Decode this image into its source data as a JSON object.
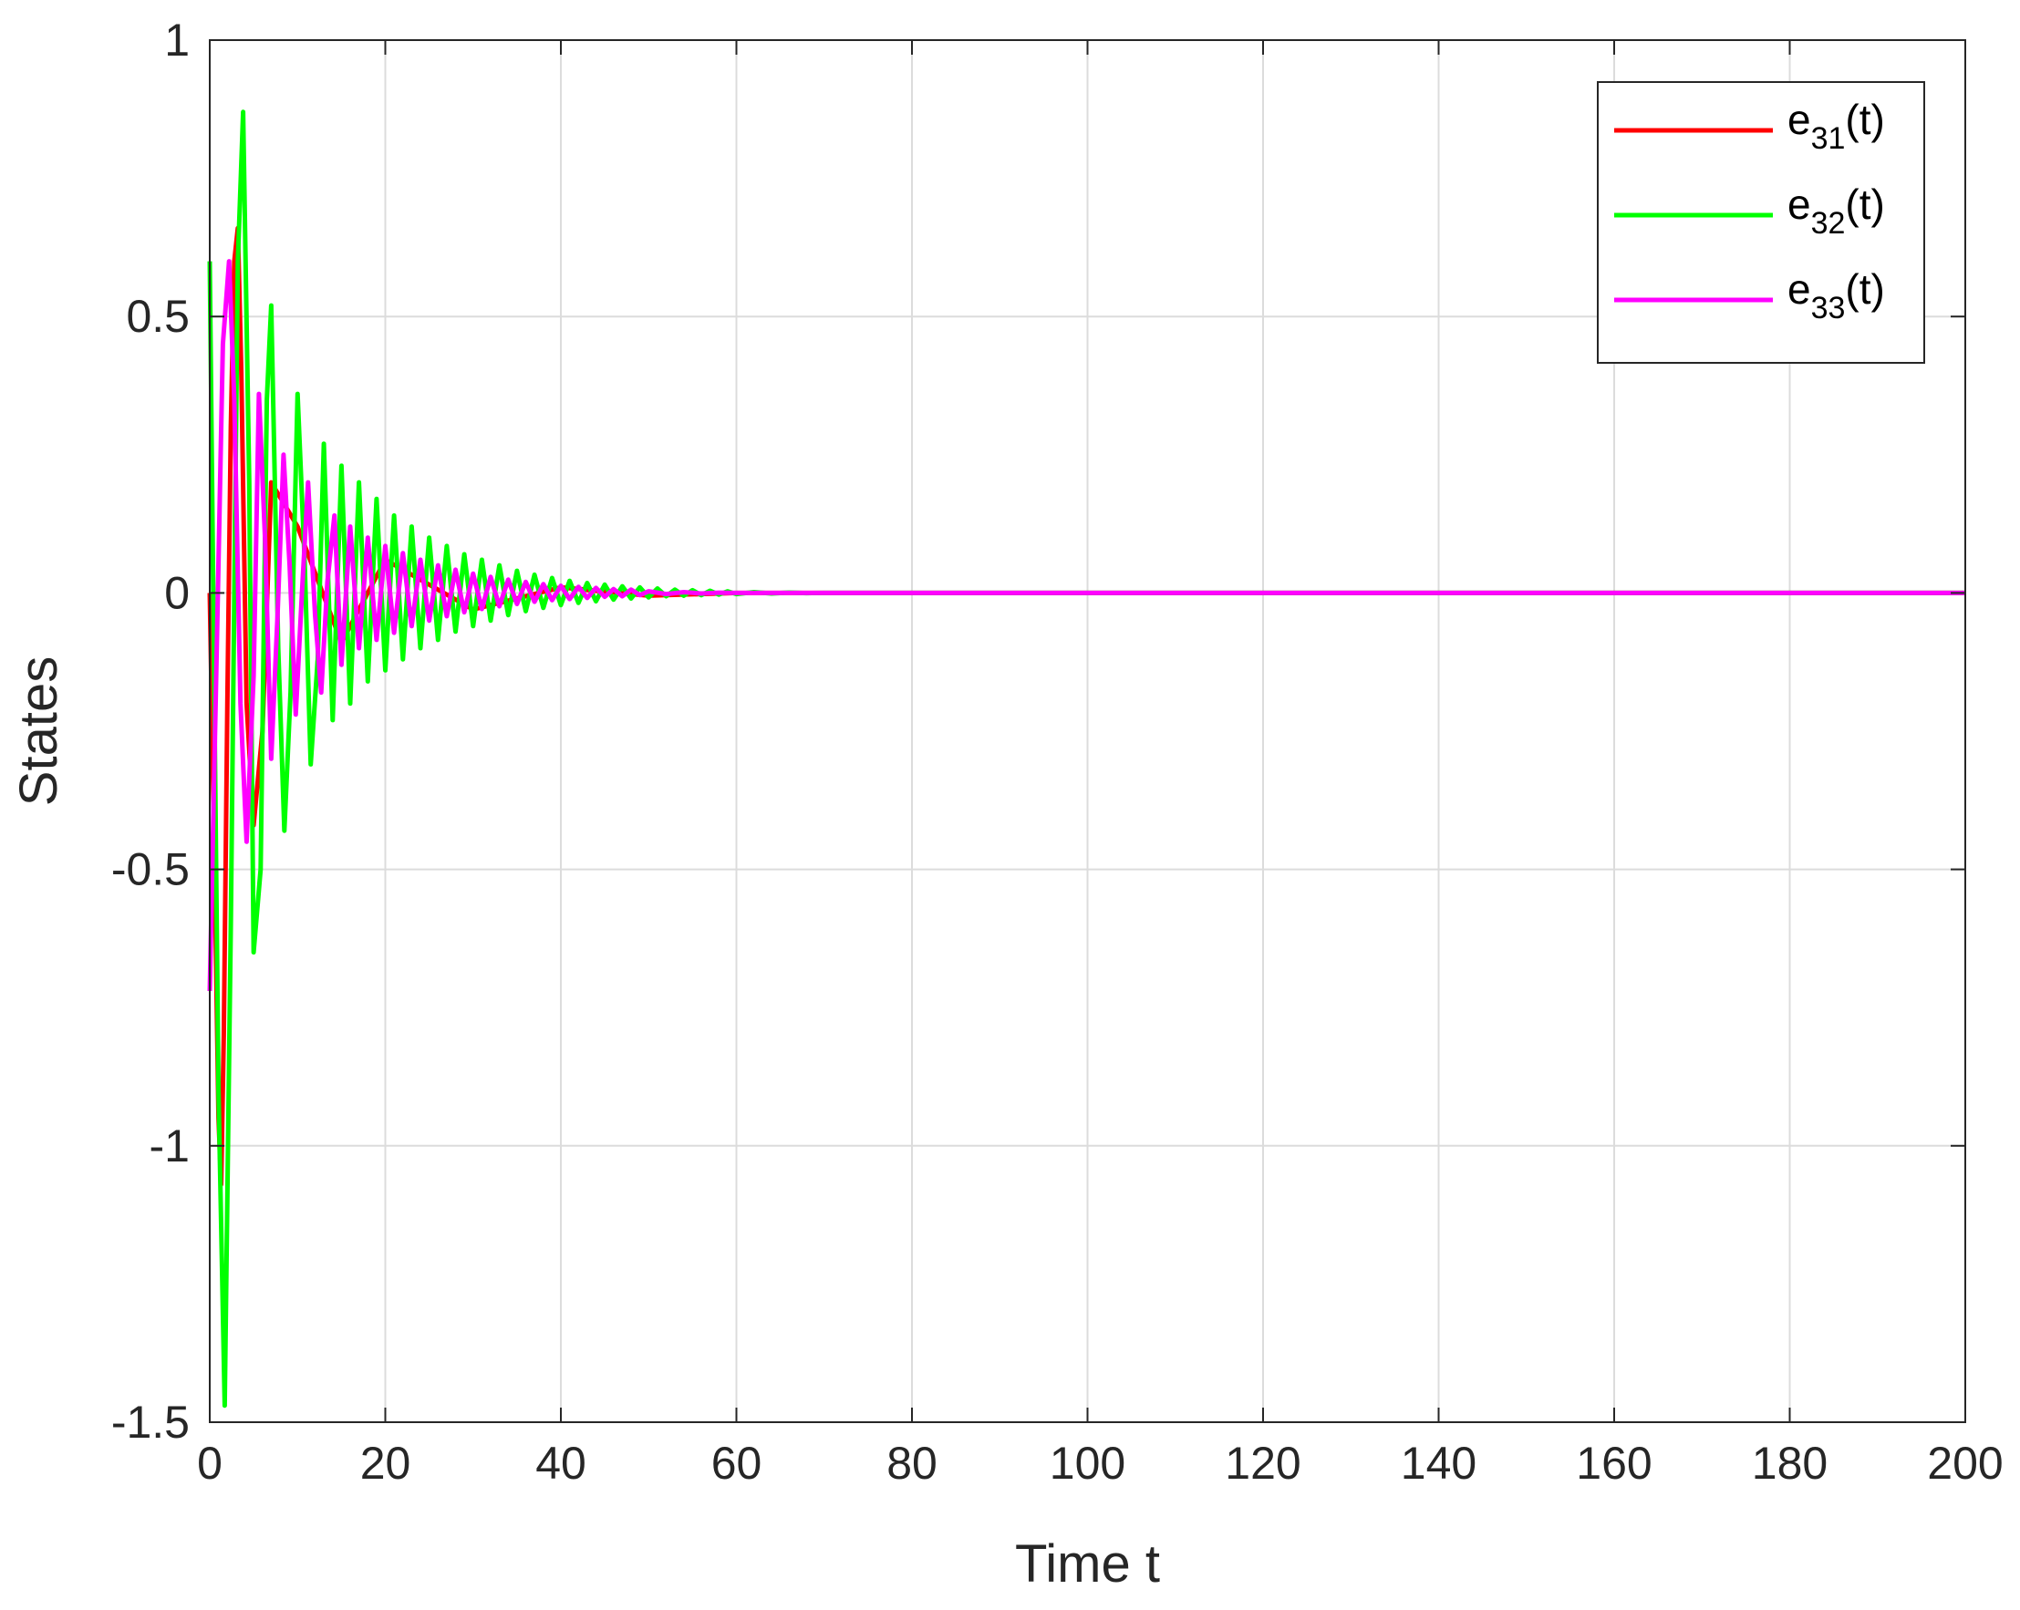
{
  "chart_data": {
    "type": "line",
    "title": "",
    "xlabel": "Time t",
    "ylabel": "States",
    "xlim": [
      0,
      200
    ],
    "ylim": [
      -1.5,
      1
    ],
    "x_ticks": [
      "0",
      "20",
      "40",
      "60",
      "80",
      "100",
      "120",
      "140",
      "160",
      "180",
      "200"
    ],
    "y_ticks": [
      "-1.5",
      "-1",
      "-0.5",
      "0",
      "0.5",
      "1"
    ],
    "grid": true,
    "legend_position": "top-right",
    "series": [
      {
        "name_base": "e",
        "name_sub": "31",
        "name_suffix": "(t)",
        "color": "#ff0000",
        "x": [
          0,
          0.6,
          1.0,
          1.3,
          1.6,
          2.0,
          2.4,
          2.8,
          3.2,
          3.6,
          4.2,
          5.0,
          6.0,
          7.0,
          10.0,
          15.0,
          20.0,
          30.0,
          40.0,
          50.0,
          60.0,
          200.0
        ],
        "y": [
          0.0,
          -0.55,
          -0.95,
          -1.07,
          -0.8,
          -0.2,
          0.3,
          0.6,
          0.66,
          0.4,
          -0.2,
          -0.42,
          -0.25,
          0.2,
          0.12,
          -0.09,
          0.06,
          -0.03,
          0.01,
          -0.005,
          0.0,
          0.0
        ]
      },
      {
        "name_base": "e",
        "name_sub": "32",
        "name_suffix": "(t)",
        "color": "#00ff00",
        "x": [
          0,
          1.0,
          1.7,
          2.4,
          3.2,
          3.8,
          4.5,
          5.0,
          5.8,
          6.5,
          7.0,
          7.8,
          8.5,
          9.2,
          10.0,
          10.8,
          11.5,
          12.3,
          13.0,
          14.0,
          15.0,
          16.0,
          17.0,
          18.0,
          19.0,
          20.0,
          21.0,
          22.0,
          23.0,
          24.0,
          25.0,
          26.0,
          27.0,
          28.0,
          29.0,
          30.0,
          31.0,
          32.0,
          33.0,
          34.0,
          35.0,
          36.0,
          37.0,
          38.0,
          39.0,
          40.0,
          41.0,
          42.0,
          43.0,
          44.0,
          45.0,
          46.0,
          47.0,
          48.0,
          49.0,
          50.0,
          51.0,
          52.0,
          53.0,
          54.0,
          55.0,
          56.0,
          57.0,
          58.0,
          59.0,
          60.0,
          62.0,
          64.0,
          66.0,
          68.0,
          70.0,
          200.0
        ],
        "y": [
          0.6,
          -0.9,
          -1.47,
          -0.6,
          0.6,
          0.87,
          0.2,
          -0.65,
          -0.5,
          0.35,
          0.52,
          -0.1,
          -0.43,
          -0.18,
          0.36,
          0.06,
          -0.31,
          -0.12,
          0.27,
          -0.23,
          0.23,
          -0.2,
          0.2,
          -0.16,
          0.17,
          -0.14,
          0.14,
          -0.12,
          0.12,
          -0.1,
          0.1,
          -0.085,
          0.085,
          -0.07,
          0.07,
          -0.06,
          0.06,
          -0.05,
          0.05,
          -0.04,
          0.04,
          -0.033,
          0.033,
          -0.027,
          0.027,
          -0.022,
          0.022,
          -0.018,
          0.018,
          -0.015,
          0.015,
          -0.012,
          0.012,
          -0.01,
          0.01,
          -0.008,
          0.008,
          -0.006,
          0.006,
          -0.005,
          0.005,
          -0.004,
          0.004,
          -0.003,
          0.003,
          -0.002,
          0.0015,
          -0.001,
          0.0007,
          -0.0004,
          0.0,
          0.0
        ]
      },
      {
        "name_base": "e",
        "name_sub": "33",
        "name_suffix": "(t)",
        "color": "#ff00ff",
        "x": [
          0,
          0.8,
          1.5,
          2.2,
          2.8,
          3.5,
          4.2,
          5.0,
          5.6,
          6.3,
          7.0,
          7.7,
          8.4,
          9.1,
          9.8,
          10.5,
          11.2,
          12.0,
          12.7,
          13.4,
          14.2,
          15.0,
          16.0,
          17.0,
          18.0,
          19.0,
          20.0,
          21.0,
          22.0,
          23.0,
          24.0,
          25.0,
          26.0,
          27.0,
          28.0,
          29.0,
          30.0,
          31.0,
          32.0,
          33.0,
          34.0,
          35.0,
          36.0,
          37.0,
          38.0,
          39.0,
          40.0,
          41.0,
          42.0,
          43.0,
          44.0,
          45.0,
          46.0,
          47.0,
          48.0,
          49.0,
          50.0,
          52.0,
          54.0,
          56.0,
          58.0,
          60.0,
          200.0
        ],
        "y": [
          -0.72,
          -0.1,
          0.45,
          0.6,
          0.35,
          -0.2,
          -0.45,
          -0.15,
          0.36,
          0.1,
          -0.3,
          -0.05,
          0.25,
          0.05,
          -0.22,
          0.0,
          0.2,
          -0.04,
          -0.18,
          0.02,
          0.14,
          -0.13,
          0.12,
          -0.1,
          0.1,
          -0.085,
          0.085,
          -0.072,
          0.072,
          -0.06,
          0.06,
          -0.05,
          0.05,
          -0.042,
          0.042,
          -0.035,
          0.035,
          -0.029,
          0.029,
          -0.024,
          0.024,
          -0.02,
          0.02,
          -0.016,
          0.016,
          -0.013,
          0.013,
          -0.011,
          0.011,
          -0.009,
          0.009,
          -0.007,
          0.007,
          -0.006,
          0.006,
          -0.004,
          0.003,
          -0.002,
          0.0015,
          -0.001,
          0.0005,
          0.0,
          0.0
        ]
      }
    ]
  }
}
